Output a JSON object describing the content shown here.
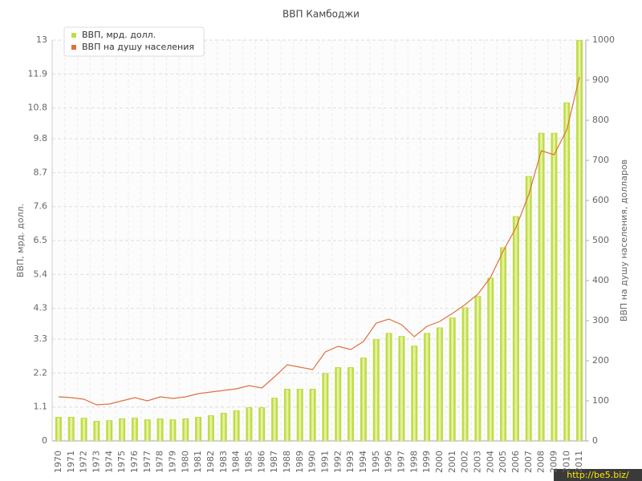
{
  "chart_data": {
    "type": "bar",
    "title": "ВВП Камбоджи",
    "y_label": "ВВП, мрд. долл.",
    "y2_label": "ВВП на душу населения, долларов",
    "watermark": "http://be5.biz/",
    "grid": true,
    "legend": "top-left",
    "categories": [
      "1970",
      "1971",
      "1972",
      "1973",
      "1974",
      "1975",
      "1976",
      "1977",
      "1978",
      "1979",
      "1980",
      "1981",
      "1982",
      "1983",
      "1984",
      "1985",
      "1986",
      "1987",
      "1988",
      "1989",
      "1990",
      "1991",
      "1992",
      "1993",
      "1994",
      "1995",
      "1996",
      "1997",
      "1998",
      "1999",
      "2000",
      "2001",
      "2002",
      "2003",
      "2004",
      "2005",
      "2006",
      "2007",
      "2008",
      "2009",
      "2010",
      "2011"
    ],
    "series": [
      {
        "name": "ВВП, мрд. долл.",
        "type": "bar",
        "color": "#bfdc45",
        "values": [
          0.78,
          0.78,
          0.75,
          0.65,
          0.67,
          0.73,
          0.75,
          0.7,
          0.73,
          0.7,
          0.73,
          0.78,
          0.83,
          0.91,
          0.99,
          1.09,
          1.09,
          1.4,
          1.69,
          1.69,
          1.69,
          2.2,
          2.39,
          2.39,
          2.7,
          3.3,
          3.5,
          3.4,
          3.09,
          3.5,
          3.68,
          4.0,
          4.33,
          4.7,
          5.29,
          6.28,
          7.29,
          8.59,
          9.99,
          9.99,
          10.98,
          13.0
        ]
      },
      {
        "name": "ВВП на душу населения",
        "type": "line",
        "axis": "y2",
        "color": "#e07040",
        "values": [
          110,
          108,
          104,
          90,
          92,
          100,
          108,
          100,
          110,
          106,
          110,
          118,
          122,
          126,
          130,
          138,
          132,
          160,
          190,
          184,
          178,
          222,
          236,
          228,
          248,
          294,
          304,
          290,
          260,
          286,
          298,
          318,
          340,
          366,
          408,
          474,
          532,
          614,
          724,
          714,
          776,
          908
        ]
      }
    ],
    "ylim": [
      0,
      13
    ],
    "yticks": [
      0,
      1.1,
      2.2,
      3.3,
      4.3,
      5.4,
      6.5,
      7.6,
      8.7,
      9.8,
      10.8,
      11.9,
      13
    ],
    "y2lim": [
      0,
      1000
    ],
    "y2ticks": [
      0,
      100,
      200,
      300,
      400,
      500,
      600,
      700,
      800,
      900,
      1000
    ]
  }
}
